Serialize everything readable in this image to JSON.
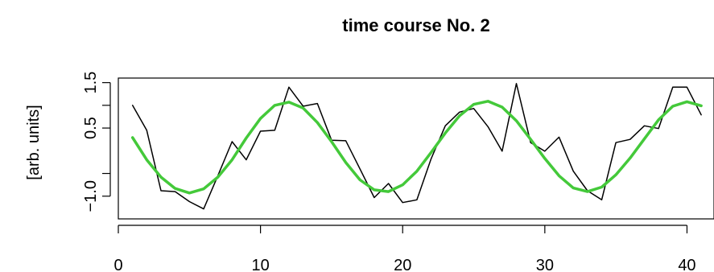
{
  "chart_data": {
    "type": "line",
    "title": "time course No. 2",
    "xlabel": "",
    "ylabel": "[arb. units]",
    "xlim": [
      0,
      41.9
    ],
    "ylim": [
      -1.5,
      1.6
    ],
    "x_ticks": [
      0,
      10,
      20,
      30,
      40
    ],
    "x_tick_labels": [
      "0",
      "10",
      "20",
      "30",
      "40"
    ],
    "y_ticks": [
      -1.0,
      -0.5,
      0.5,
      1.0,
      1.5
    ],
    "y_tick_labels": [
      "−1.0",
      "",
      "0.5",
      "",
      "1.5"
    ],
    "grid": false,
    "legend": "none",
    "series": [
      {
        "color": "#000000",
        "line_width": 1.5,
        "x": [
          1,
          2,
          3,
          4,
          5,
          6,
          7,
          8,
          9,
          10,
          11,
          12,
          13,
          14,
          15,
          16,
          17,
          18,
          19,
          20,
          21,
          22,
          23,
          24,
          25,
          26,
          27,
          28,
          29,
          30,
          31,
          32,
          33,
          34,
          35,
          36,
          37,
          38,
          39,
          40,
          41
        ],
        "values": [
          1.0,
          0.45,
          -0.88,
          -0.9,
          -1.12,
          -1.28,
          -0.55,
          0.2,
          -0.2,
          0.43,
          0.45,
          1.4,
          0.98,
          1.04,
          0.23,
          0.22,
          -0.4,
          -1.03,
          -0.72,
          -1.14,
          -1.08,
          -0.18,
          0.55,
          0.85,
          0.93,
          0.53,
          -0.01,
          1.48,
          0.18,
          -0.01,
          0.3,
          -0.45,
          -0.88,
          -1.08,
          0.18,
          0.25,
          0.55,
          0.49,
          1.4,
          1.4,
          0.79
        ]
      },
      {
        "color": "#44c93a",
        "line_width": 3.5,
        "x": [
          1,
          2,
          3,
          4,
          5,
          6,
          7,
          8,
          9,
          10,
          11,
          12,
          13,
          14,
          15,
          16,
          17,
          18,
          19,
          20,
          21,
          22,
          23,
          24,
          25,
          26,
          27,
          28,
          29,
          30,
          31,
          32,
          33,
          34,
          35,
          36,
          37,
          38,
          39,
          40,
          41
        ],
        "values": [
          0.29,
          -0.2,
          -0.58,
          -0.83,
          -0.93,
          -0.84,
          -0.58,
          -0.2,
          0.28,
          0.71,
          1.0,
          1.07,
          0.94,
          0.62,
          0.2,
          -0.26,
          -0.64,
          -0.86,
          -0.9,
          -0.75,
          -0.45,
          -0.04,
          0.39,
          0.77,
          1.02,
          1.09,
          0.96,
          0.66,
          0.25,
          -0.17,
          -0.55,
          -0.82,
          -0.9,
          -0.8,
          -0.53,
          -0.16,
          0.26,
          0.68,
          0.98,
          1.08,
          0.99
        ]
      }
    ]
  }
}
